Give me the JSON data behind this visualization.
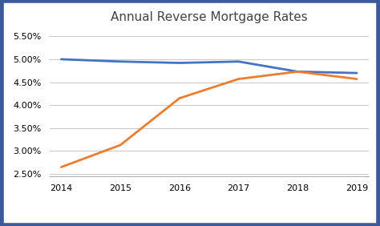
{
  "title": "Annual Reverse Mortgage Rates",
  "years": [
    2014,
    2015,
    2016,
    2017,
    2018,
    2019
  ],
  "fixed_rate": [
    0.05,
    0.0495,
    0.0492,
    0.0495,
    0.0473,
    0.047
  ],
  "adjustable_rate": [
    0.0265,
    0.0313,
    0.0415,
    0.0457,
    0.0473,
    0.0457
  ],
  "fixed_color": "#4472C4",
  "adjustable_color": "#ED7D31",
  "ylim": [
    0.0245,
    0.057
  ],
  "yticks": [
    0.025,
    0.03,
    0.035,
    0.04,
    0.045,
    0.05,
    0.055
  ],
  "line_width": 2.0,
  "bg_color": "#ffffff",
  "grid_color": "#c8c8c8",
  "border_color": "#3C5A9A",
  "border_width": 4,
  "title_fontsize": 11,
  "tick_fontsize": 8
}
